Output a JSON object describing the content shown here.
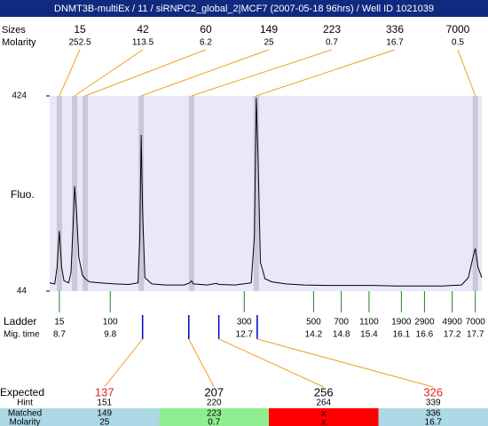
{
  "chart_data": {
    "type": "electropherogram",
    "title": "DNMT3B-multiEx / 11 / siRNPC2_global_2|MCF7 (2007-05-18 96hrs) / Well ID 1021039",
    "y_label": "Fluo.",
    "xlim": [
      8.49,
      17.84
    ],
    "ylim": [
      44,
      424
    ],
    "yticks": [
      44,
      424
    ],
    "trace": {
      "color": "#000000",
      "x": [
        8.49,
        8.6,
        8.65,
        8.7,
        8.75,
        8.8,
        8.9,
        8.95,
        9.0,
        9.03,
        9.07,
        9.12,
        9.2,
        9.26,
        9.35,
        9.6,
        9.9,
        10.2,
        10.4,
        10.44,
        10.47,
        10.5,
        10.55,
        10.7,
        11.0,
        11.4,
        11.52,
        11.56,
        11.6,
        11.9,
        12.1,
        12.15,
        12.5,
        12.85,
        12.92,
        12.96,
        13.0,
        13.05,
        13.15,
        13.3,
        13.6,
        14.0,
        14.5,
        15.0,
        15.5,
        16.0,
        16.5,
        17.0,
        17.4,
        17.55,
        17.65,
        17.7,
        17.76,
        17.84
      ],
      "y": [
        60,
        58,
        90,
        161,
        90,
        64,
        60,
        80,
        180,
        248,
        200,
        110,
        75,
        68,
        62,
        60,
        58,
        57,
        60,
        150,
        348,
        200,
        70,
        58,
        56,
        56,
        60,
        64,
        58,
        56,
        59,
        57,
        56,
        60,
        150,
        420,
        300,
        100,
        68,
        62,
        58,
        56,
        55,
        55,
        55,
        54,
        54,
        54,
        56,
        70,
        110,
        127,
        90,
        70
      ]
    },
    "peaks": {
      "size_label": "Sizes",
      "molarity_label": "Molarity",
      "band_color": "#c8c8d8",
      "link_color": "#f0a020",
      "sizes": [
        15,
        42,
        60,
        149,
        223,
        336,
        7000
      ],
      "molarity": [
        252.5,
        113.5,
        6.2,
        25,
        0.7,
        16.7,
        0.5
      ],
      "times": [
        8.7,
        9.03,
        9.26,
        10.47,
        11.56,
        12.96,
        17.7
      ]
    },
    "ladder": {
      "label": "Ladder",
      "time_label": "Mig. time",
      "color": "#208020",
      "sizes": [
        15,
        100,
        300,
        500,
        700,
        1100,
        1900,
        2900,
        4900,
        7000
      ],
      "times": [
        8.7,
        9.8,
        12.7,
        14.2,
        14.8,
        15.4,
        16.1,
        16.6,
        17.2,
        17.7
      ]
    },
    "expected": {
      "expected_label": "Expected",
      "hint_label": "Hint",
      "matched_label": "Matched",
      "molarity_label": "Molarity",
      "marker_color": "#0000cc",
      "expected": [
        137,
        207,
        256,
        326
      ],
      "colors": [
        "#e02020",
        "#000000",
        "#000000",
        "#e02020"
      ],
      "hint": [
        151,
        220,
        264,
        339
      ],
      "matched": [
        149,
        223,
        "x",
        336
      ],
      "molarity": [
        25,
        0.7,
        "x",
        16.7
      ],
      "times": [
        10.5,
        11.5,
        12.15,
        12.98
      ],
      "backgrounds": [
        "#add8e6",
        "#90ee90",
        "#ff0000",
        "#add8e6"
      ]
    }
  }
}
